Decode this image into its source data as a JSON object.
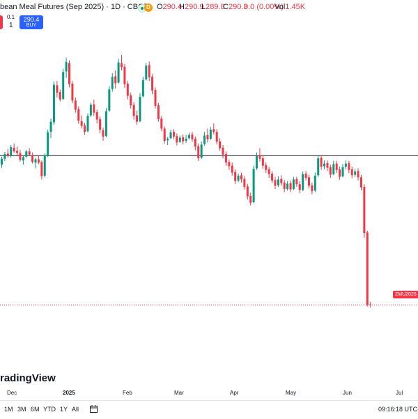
{
  "header": {
    "title": "bean Meal Futures (Sep 2025) · 1D · CBOT",
    "badge_d": "D",
    "ohlc": {
      "o_label": "O",
      "o_value": "290.4",
      "h_label": "H",
      "h_value": "290.9",
      "l_label": "L",
      "l_value": "289.8",
      "c_label": "C",
      "c_value": "290.3",
      "change": "0.0 (0.00%)",
      "vol_label": "Vol",
      "vol_value": "1.45K"
    },
    "colors": {
      "up": "#089981",
      "down": "#f23645",
      "buy": "#2962ff"
    }
  },
  "trade": {
    "spread": "0.1",
    "quantity": "1",
    "buy_price": "290.4",
    "buy_label": "BUY"
  },
  "chart_data": {
    "type": "candlestick",
    "interval": "1D",
    "ylim": [
      286.0,
      340.0
    ],
    "horizontal_line": 318.5,
    "last_price": 290.3,
    "symbol_tag": "ZMU2025",
    "x_labels": [
      "Dec",
      "2025",
      "Feb",
      "Mar",
      "Apr",
      "May",
      "Jun",
      "Jul"
    ],
    "candles": [
      [
        316.8,
        318.3,
        316.2,
        317.9
      ],
      [
        317.9,
        319.2,
        317.5,
        318.8
      ],
      [
        318.9,
        319.8,
        318.1,
        318.4
      ],
      [
        318.4,
        320.5,
        318.1,
        320.1
      ],
      [
        320.0,
        320.8,
        319.0,
        319.3
      ],
      [
        319.4,
        320.2,
        318.5,
        319.0
      ],
      [
        319.0,
        319.6,
        317.4,
        317.7
      ],
      [
        317.6,
        318.5,
        316.8,
        318.2
      ],
      [
        318.3,
        319.6,
        318.1,
        319.3
      ],
      [
        319.3,
        319.9,
        318.4,
        318.7
      ],
      [
        318.6,
        319.1,
        317.0,
        317.3
      ],
      [
        317.2,
        318.1,
        316.1,
        317.8
      ],
      [
        317.8,
        318.6,
        316.9,
        317.2
      ],
      [
        317.3,
        317.6,
        314.0,
        314.6
      ],
      [
        314.7,
        318.9,
        314.4,
        318.5
      ],
      [
        318.4,
        323.4,
        318.2,
        322.9
      ],
      [
        323.0,
        325.5,
        321.8,
        324.9
      ],
      [
        324.8,
        332.5,
        324.3,
        331.9
      ],
      [
        331.8,
        332.6,
        329.5,
        330.4
      ],
      [
        330.5,
        331.0,
        328.7,
        329.1
      ],
      [
        329.2,
        334.9,
        329.0,
        334.3
      ],
      [
        334.4,
        337.0,
        333.2,
        336.2
      ],
      [
        336.0,
        336.5,
        331.4,
        332.0
      ],
      [
        332.1,
        332.6,
        328.4,
        328.9
      ],
      [
        328.9,
        329.5,
        326.6,
        327.2
      ],
      [
        327.3,
        327.8,
        324.5,
        325.1
      ],
      [
        325.0,
        326.1,
        323.6,
        324.1
      ],
      [
        324.2,
        324.7,
        322.4,
        323.0
      ],
      [
        323.1,
        326.5,
        322.9,
        326.0
      ],
      [
        326.1,
        328.5,
        325.8,
        328.1
      ],
      [
        328.2,
        329.1,
        326.0,
        326.6
      ],
      [
        326.7,
        327.2,
        324.6,
        325.3
      ],
      [
        325.4,
        325.9,
        322.7,
        323.4
      ],
      [
        323.3,
        323.8,
        321.3,
        322.1
      ],
      [
        322.2,
        327.5,
        322.0,
        326.9
      ],
      [
        327.0,
        331.6,
        326.8,
        331.0
      ],
      [
        331.1,
        334.1,
        330.6,
        333.4
      ],
      [
        333.5,
        334.6,
        331.2,
        332.2
      ],
      [
        332.3,
        336.8,
        332.1,
        336.1
      ],
      [
        336.0,
        337.5,
        334.6,
        335.2
      ],
      [
        335.3,
        335.8,
        331.3,
        332.0
      ],
      [
        332.1,
        332.6,
        329.1,
        329.8
      ],
      [
        329.9,
        330.4,
        327.4,
        328.0
      ],
      [
        328.1,
        328.6,
        325.3,
        326.0
      ],
      [
        326.1,
        327.0,
        324.3,
        324.9
      ],
      [
        325.0,
        330.3,
        324.8,
        329.6
      ],
      [
        329.7,
        333.4,
        329.5,
        332.8
      ],
      [
        332.9,
        336.0,
        332.7,
        335.5
      ],
      [
        335.6,
        336.3,
        332.6,
        333.3
      ],
      [
        333.4,
        333.9,
        330.1,
        330.8
      ],
      [
        330.9,
        331.4,
        327.4,
        327.9
      ],
      [
        328.0,
        328.5,
        324.9,
        325.4
      ],
      [
        325.5,
        326.0,
        323.1,
        323.6
      ],
      [
        323.6,
        324.0,
        320.8,
        321.3
      ],
      [
        321.4,
        322.0,
        320.5,
        321.7
      ],
      [
        321.8,
        323.4,
        321.6,
        322.9
      ],
      [
        323.0,
        323.5,
        321.6,
        322.1
      ],
      [
        322.2,
        322.7,
        320.4,
        321.0
      ],
      [
        321.1,
        322.3,
        320.9,
        321.9
      ],
      [
        322.0,
        322.5,
        320.6,
        321.2
      ],
      [
        321.3,
        322.4,
        320.9,
        321.7
      ],
      [
        321.8,
        322.8,
        321.6,
        322.4
      ],
      [
        322.5,
        323.0,
        321.1,
        321.6
      ],
      [
        321.7,
        322.1,
        319.5,
        320.2
      ],
      [
        320.3,
        320.8,
        317.5,
        318.0
      ],
      [
        318.1,
        321.2,
        317.9,
        320.6
      ],
      [
        320.7,
        323.0,
        320.4,
        322.3
      ],
      [
        322.4,
        323.6,
        321.0,
        321.6
      ],
      [
        321.7,
        323.9,
        321.5,
        323.4
      ],
      [
        323.5,
        324.6,
        322.5,
        323.0
      ],
      [
        323.0,
        323.5,
        320.6,
        321.1
      ],
      [
        321.2,
        321.8,
        319.4,
        319.9
      ],
      [
        320.0,
        320.5,
        318.0,
        318.7
      ],
      [
        318.8,
        319.3,
        316.6,
        317.2
      ],
      [
        317.3,
        317.8,
        315.8,
        316.5
      ],
      [
        316.6,
        317.2,
        314.7,
        315.3
      ],
      [
        315.4,
        315.9,
        313.1,
        313.7
      ],
      [
        313.8,
        315.1,
        313.5,
        314.7
      ],
      [
        314.8,
        315.3,
        313.4,
        314.0
      ],
      [
        314.1,
        314.6,
        312.1,
        312.6
      ],
      [
        312.7,
        313.2,
        310.2,
        310.8
      ],
      [
        310.9,
        311.5,
        309.1,
        309.6
      ],
      [
        309.7,
        316.6,
        309.5,
        316.0
      ],
      [
        316.1,
        319.1,
        315.8,
        318.4
      ],
      [
        318.5,
        319.9,
        317.4,
        317.9
      ],
      [
        318.0,
        318.6,
        316.0,
        316.6
      ],
      [
        316.7,
        317.2,
        315.2,
        315.8
      ],
      [
        315.9,
        316.4,
        314.3,
        315.0
      ],
      [
        315.1,
        315.6,
        313.3,
        313.8
      ],
      [
        313.9,
        314.5,
        312.2,
        312.8
      ],
      [
        312.9,
        314.6,
        312.6,
        314.0
      ],
      [
        314.1,
        314.8,
        312.8,
        313.3
      ],
      [
        313.4,
        313.9,
        311.6,
        312.2
      ],
      [
        312.2,
        313.7,
        311.9,
        313.2
      ],
      [
        313.3,
        313.8,
        311.6,
        312.1
      ],
      [
        312.2,
        314.5,
        312.0,
        314.0
      ],
      [
        314.1,
        314.5,
        312.6,
        313.1
      ],
      [
        313.1,
        313.7,
        311.4,
        312.0
      ],
      [
        312.0,
        315.5,
        311.8,
        315.0
      ],
      [
        315.1,
        315.6,
        313.8,
        314.3
      ],
      [
        314.4,
        314.9,
        312.3,
        312.8
      ],
      [
        312.9,
        313.4,
        311.2,
        311.8
      ],
      [
        311.9,
        315.3,
        311.6,
        314.7
      ],
      [
        314.8,
        318.6,
        314.5,
        318.0
      ],
      [
        318.1,
        318.6,
        315.8,
        316.4
      ],
      [
        316.5,
        317.6,
        315.9,
        317.0
      ],
      [
        317.1,
        317.6,
        315.6,
        316.2
      ],
      [
        316.3,
        316.8,
        314.3,
        314.9
      ],
      [
        315.0,
        317.5,
        314.8,
        316.9
      ],
      [
        317.0,
        317.5,
        315.2,
        315.8
      ],
      [
        315.9,
        316.4,
        313.9,
        314.5
      ],
      [
        314.6,
        316.9,
        314.4,
        316.3
      ],
      [
        316.4,
        317.6,
        315.9,
        317.0
      ],
      [
        317.1,
        317.5,
        315.2,
        315.8
      ],
      [
        315.9,
        316.4,
        314.2,
        314.8
      ],
      [
        314.9,
        316.0,
        314.5,
        315.5
      ],
      [
        315.6,
        316.1,
        313.8,
        314.4
      ],
      [
        314.4,
        314.9,
        311.9,
        312.5
      ],
      [
        312.6,
        313.1,
        303.0,
        303.9
      ],
      [
        304.0,
        304.3,
        290.0,
        290.3
      ],
      [
        290.4,
        290.9,
        289.8,
        290.3
      ]
    ]
  },
  "time_axis": {
    "months": [
      "Dec",
      "2025",
      "Feb",
      "Mar",
      "Apr",
      "May",
      "Jun",
      "Jul"
    ]
  },
  "footer": {
    "watermark": "radingView",
    "ranges": [
      "1M",
      "3M",
      "6M",
      "YTD",
      "1Y",
      "All"
    ],
    "clock": "09:16:18 UTC-"
  }
}
